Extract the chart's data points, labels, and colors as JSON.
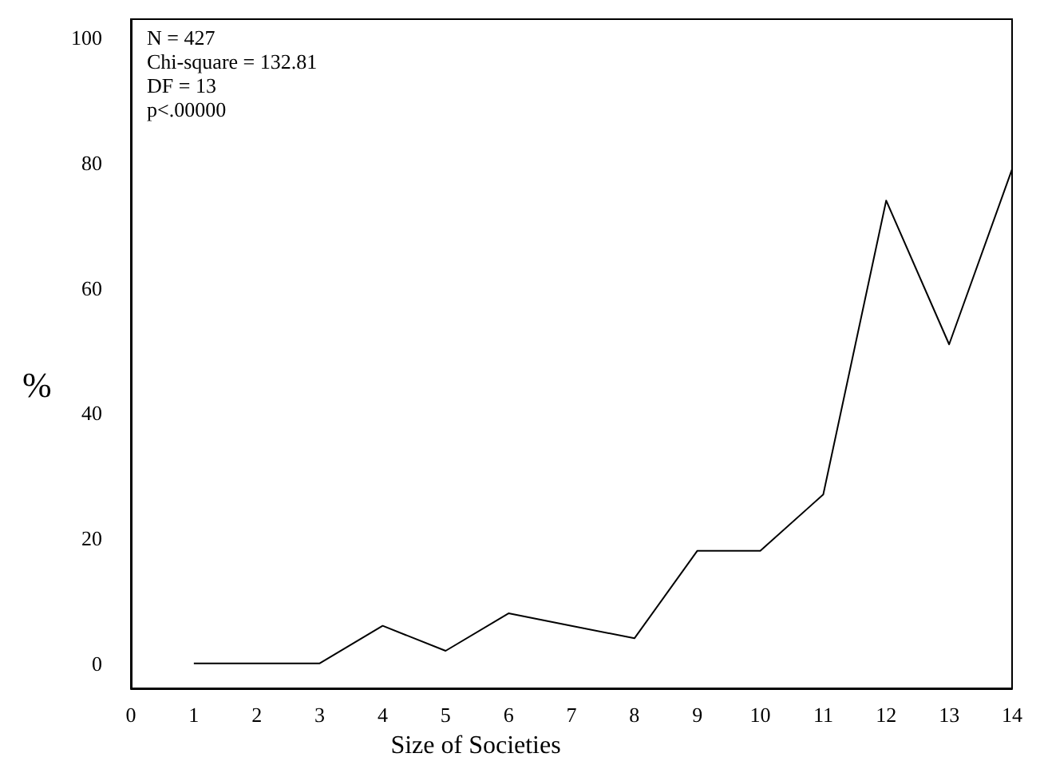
{
  "chart_data": {
    "type": "line",
    "xlabel": "Size of Societies",
    "ylabel": "%",
    "x": [
      1,
      2,
      3,
      4,
      5,
      6,
      7,
      8,
      9,
      10,
      11,
      12,
      13,
      14
    ],
    "series": [
      {
        "color": "#000000",
        "values": [
          0,
          0,
          0,
          6,
          2,
          8,
          6,
          4,
          18,
          18,
          27,
          74,
          51,
          79
        ]
      }
    ],
    "xlim": [
      0,
      14
    ],
    "xticks": [
      0,
      1,
      2,
      3,
      4,
      5,
      6,
      7,
      8,
      9,
      10,
      11,
      12,
      13,
      14
    ],
    "ylim": [
      -4,
      103
    ],
    "yticks": [
      0,
      20,
      40,
      60,
      80,
      100
    ],
    "annotations": [
      "N = 427",
      "Chi-square = 132.81",
      "DF = 13",
      "p<.00000"
    ],
    "marker": "none",
    "line_style": "solid"
  }
}
